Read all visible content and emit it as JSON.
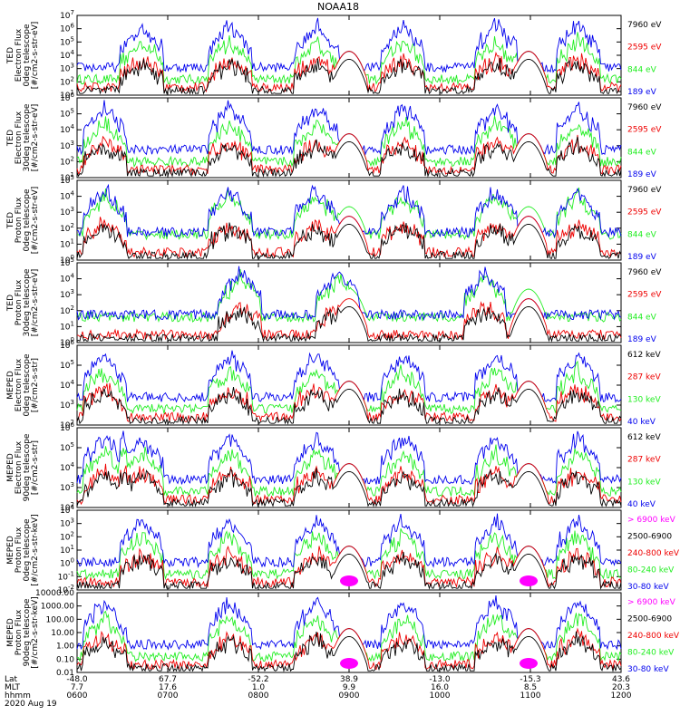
{
  "title": "NOAA18",
  "colors": {
    "black": "#000000",
    "red": "#ee0000",
    "green": "#22ee22",
    "blue": "#0000ee",
    "magenta": "#ff00ff"
  },
  "chart_data": [
    {
      "type": "line",
      "ylabel": [
        "TED",
        "Electron Flux",
        "0deg telescope",
        "[#/cm2-s-str-eV]"
      ],
      "scale": "log",
      "ylim_exp": [
        1,
        7
      ],
      "tick_labels": [
        "10^1",
        "10^2",
        "10^3",
        "10^4",
        "10^5",
        "10^6",
        "10^7"
      ],
      "legend": [
        {
          "label": "7960 eV",
          "color": "black"
        },
        {
          "label": "2595 eV",
          "color": "red"
        },
        {
          "label": "844 eV",
          "color": "green"
        },
        {
          "label": "189 eV",
          "color": "blue"
        }
      ],
      "bursts": [
        0.12,
        0.28,
        0.44,
        0.6,
        0.77,
        0.92
      ],
      "ovals": [
        0.5,
        0.83
      ],
      "green_bg": false
    },
    {
      "type": "line",
      "ylabel": [
        "TED",
        "Electron Flux",
        "30deg telescope",
        "[#/cm2-s-str-eV]"
      ],
      "scale": "log",
      "ylim_exp": [
        1,
        6
      ],
      "tick_labels": [
        "10^1",
        "10^2",
        "10^3",
        "10^4",
        "10^5",
        "10^6"
      ],
      "legend": [
        {
          "label": "7960 eV",
          "color": "black"
        },
        {
          "label": "2595 eV",
          "color": "red"
        },
        {
          "label": "844 eV",
          "color": "green"
        },
        {
          "label": "189 eV",
          "color": "blue"
        }
      ],
      "bursts": [
        0.05,
        0.28,
        0.44,
        0.6,
        0.77,
        0.92
      ],
      "ovals": [
        0.5,
        0.83
      ],
      "green_bg": false
    },
    {
      "type": "line",
      "ylabel": [
        "TED",
        "Proton Flux",
        "0deg telescope",
        "[#/cm2-s-str-eV]"
      ],
      "scale": "log",
      "ylim_exp": [
        0,
        5
      ],
      "tick_labels": [
        "10^0",
        "10^1",
        "10^2",
        "10^3",
        "10^4",
        "10^5"
      ],
      "legend": [
        {
          "label": "7960 eV",
          "color": "black"
        },
        {
          "label": "2595 eV",
          "color": "red"
        },
        {
          "label": "844 eV",
          "color": "green"
        },
        {
          "label": "189 eV",
          "color": "blue"
        }
      ],
      "bursts": [
        0.05,
        0.28,
        0.44,
        0.6,
        0.77,
        0.92
      ],
      "ovals": [
        0.5,
        0.83
      ],
      "green_bg": true
    },
    {
      "type": "line",
      "ylabel": [
        "TED",
        "Proton Flux",
        "30deg telescope",
        "[#/cm2-s-str-eV]"
      ],
      "scale": "log",
      "ylim_exp": [
        0,
        5
      ],
      "tick_labels": [
        "10^0",
        "10^1",
        "10^2",
        "10^3",
        "10^4",
        "10^5"
      ],
      "legend": [
        {
          "label": "7960 eV",
          "color": "black"
        },
        {
          "label": "2595 eV",
          "color": "red"
        },
        {
          "label": "844 eV",
          "color": "green"
        },
        {
          "label": "189 eV",
          "color": "blue"
        }
      ],
      "bursts": [
        0.3,
        0.48,
        0.75
      ],
      "ovals": [
        0.5,
        0.83
      ],
      "green_bg": true
    },
    {
      "type": "line",
      "ylabel": [
        "MEPED",
        "Electron Flux",
        "0deg telescope",
        "[#/cm2-s-str]"
      ],
      "scale": "log",
      "ylim_exp": [
        2,
        6
      ],
      "tick_labels": [
        "10^2",
        "10^3",
        "10^4",
        "10^5",
        "10^6"
      ],
      "legend": [
        {
          "label": "612 keV",
          "color": "black"
        },
        {
          "label": "287 keV",
          "color": "red"
        },
        {
          "label": "130 keV",
          "color": "green"
        },
        {
          "label": "40 keV",
          "color": "blue"
        }
      ],
      "bursts": [
        0.05,
        0.28,
        0.44,
        0.6,
        0.77,
        0.92
      ],
      "ovals": [
        0.5,
        0.83
      ],
      "green_bg": false
    },
    {
      "type": "line",
      "ylabel": [
        "MEPED",
        "Electron Flux",
        "90deg telescope",
        "[#/cm2-s-str]"
      ],
      "scale": "log",
      "ylim_exp": [
        2,
        6
      ],
      "tick_labels": [
        "10^2",
        "10^3",
        "10^4",
        "10^5",
        "10^6"
      ],
      "legend": [
        {
          "label": "612 keV",
          "color": "black"
        },
        {
          "label": "287 keV",
          "color": "red"
        },
        {
          "label": "130 keV",
          "color": "green"
        },
        {
          "label": "40 keV",
          "color": "blue"
        }
      ],
      "bursts": [
        0.05,
        0.12,
        0.28,
        0.44,
        0.6,
        0.77,
        0.92
      ],
      "ovals": [
        0.5,
        0.83
      ],
      "green_bg": false
    },
    {
      "type": "line",
      "ylabel": [
        "MEPED",
        "Proton Flux",
        "0deg telescope",
        "[#/cm2-s-str-keV]"
      ],
      "scale": "log",
      "ylim_exp": [
        -2,
        4
      ],
      "tick_labels": [
        "10^-2",
        "10^-1",
        "10^0",
        "10^1",
        "10^2",
        "10^3",
        "10^4"
      ],
      "legend": [
        {
          "label": "> 6900 keV",
          "color": "magenta"
        },
        {
          "label": "2500-6900",
          "color": "black"
        },
        {
          "label": "240-800 keV",
          "color": "red"
        },
        {
          "label": "80-240 keV",
          "color": "green"
        },
        {
          "label": "30-80 keV",
          "color": "blue"
        }
      ],
      "bursts": [
        0.12,
        0.28,
        0.44,
        0.6,
        0.77,
        0.92
      ],
      "ovals": [
        0.5,
        0.83
      ],
      "green_bg": false
    },
    {
      "type": "line",
      "ylabel": [
        "MEPED",
        "Proton Flux",
        "90deg telescope",
        "[#/cm2-s-str-keV]"
      ],
      "scale": "log",
      "ylim_exp": [
        -2,
        4
      ],
      "tick_labels": [
        "0.01",
        "0.10",
        "1.00",
        "10.00",
        "100.00",
        "1000.00",
        "10000.00"
      ],
      "legend": [
        {
          "label": "> 6900 keV",
          "color": "magenta"
        },
        {
          "label": "2500-6900",
          "color": "black"
        },
        {
          "label": "240-800 keV",
          "color": "red"
        },
        {
          "label": "80-240 keV",
          "color": "green"
        },
        {
          "label": "30-80 keV",
          "color": "blue"
        }
      ],
      "bursts": [
        0.05,
        0.28,
        0.44,
        0.6,
        0.77,
        0.92
      ],
      "ovals": [
        0.5,
        0.83
      ],
      "green_bg": false
    }
  ],
  "xaxis": {
    "row_labels": [
      "Lat",
      "MLT",
      "hhmm"
    ],
    "date": "2020 Aug 19",
    "ticks": [
      {
        "lat": "-48.0",
        "mlt": "7.7",
        "hhmm": "0600"
      },
      {
        "lat": "67.7",
        "mlt": "17.6",
        "hhmm": "0700"
      },
      {
        "lat": "-52.2",
        "mlt": "1.0",
        "hhmm": "0800"
      },
      {
        "lat": "38.9",
        "mlt": "9.9",
        "hhmm": "0900"
      },
      {
        "lat": "-13.0",
        "mlt": "16.0",
        "hhmm": "1000"
      },
      {
        "lat": "-15.3",
        "mlt": "8.5",
        "hhmm": "1100"
      },
      {
        "lat": "43.6",
        "mlt": "20.3",
        "hhmm": "1200"
      }
    ]
  }
}
